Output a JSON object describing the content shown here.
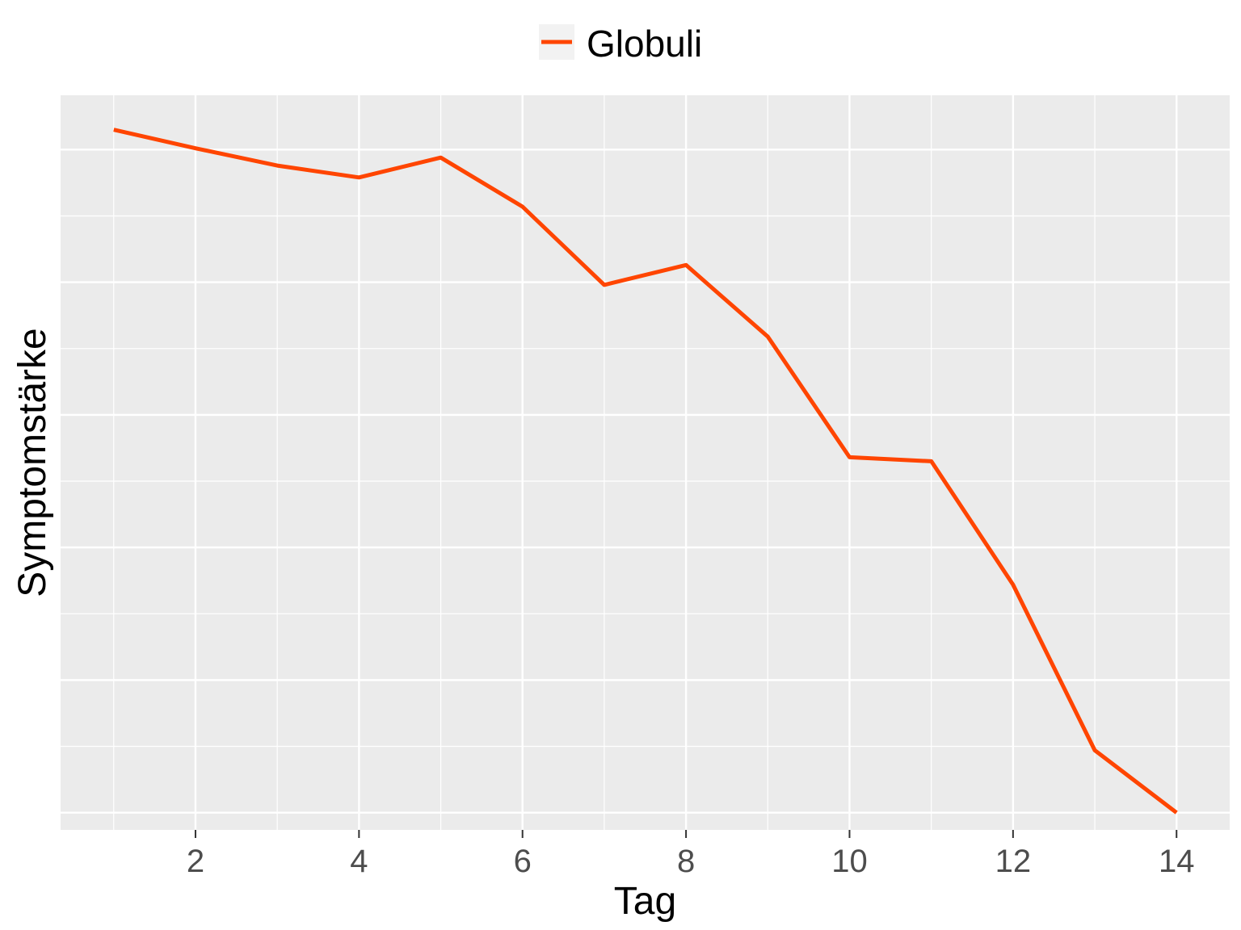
{
  "chart_data": {
    "type": "line",
    "title": "",
    "xlabel": "Tag",
    "ylabel": "Symptomstärke",
    "x": [
      1,
      2,
      3,
      4,
      5,
      6,
      7,
      8,
      9,
      10,
      11,
      12,
      13,
      14
    ],
    "series": [
      {
        "name": "Globuli",
        "color": "#FF4500",
        "values": [
          10.0,
          9.86,
          9.73,
          9.64,
          9.79,
          9.42,
          8.83,
          8.98,
          8.44,
          7.53,
          7.5,
          6.57,
          5.32,
          4.85
        ]
      }
    ],
    "xlim": [
      0.35,
      14.65
    ],
    "ylim": [
      4.72,
      10.26
    ],
    "xticks": [
      2,
      4,
      6,
      8,
      10,
      12,
      14
    ],
    "x_minor_ticks": [
      1,
      3,
      5,
      7,
      9,
      11,
      13
    ],
    "yticks": [
      4.85,
      5.85,
      6.85,
      7.85,
      8.85,
      9.85
    ],
    "ytick_labels_shown": false,
    "grid": true,
    "legend_position": "top",
    "panel_background": "#EBEBEB",
    "grid_color": "#FFFFFF"
  }
}
